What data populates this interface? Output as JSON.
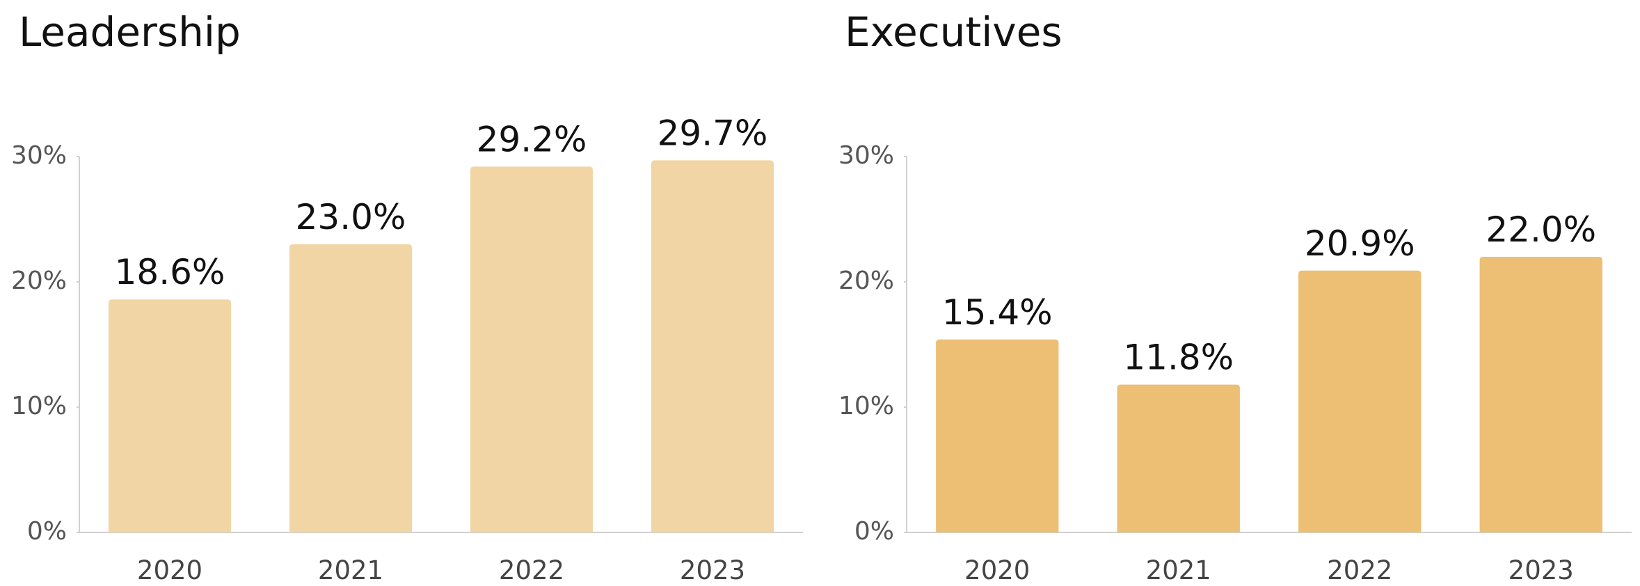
{
  "chart_data": [
    {
      "type": "bar",
      "title": "Leadership",
      "categories": [
        "2020",
        "2021",
        "2022",
        "2023"
      ],
      "values": [
        18.6,
        23.0,
        29.2,
        29.7
      ],
      "value_labels": [
        "18.6%",
        "23.0%",
        "29.2%",
        "29.7%"
      ],
      "color": "#f1d5a5",
      "ylim": [
        0,
        30
      ],
      "yticks": [
        {
          "value": 0,
          "label": "0%"
        },
        {
          "value": 10,
          "label": "10%"
        },
        {
          "value": 20,
          "label": "20%"
        },
        {
          "value": 30,
          "label": "30%"
        }
      ]
    },
    {
      "type": "bar",
      "title": "Executives",
      "categories": [
        "2020",
        "2021",
        "2022",
        "2023"
      ],
      "values": [
        15.4,
        11.8,
        20.9,
        22.0
      ],
      "value_labels": [
        "15.4%",
        "11.8%",
        "20.9%",
        "22.0%"
      ],
      "color": "#ecbf74",
      "ylim": [
        0,
        30
      ],
      "yticks": [
        {
          "value": 0,
          "label": "0%"
        },
        {
          "value": 10,
          "label": "10%"
        },
        {
          "value": 20,
          "label": "20%"
        },
        {
          "value": 30,
          "label": "30%"
        }
      ]
    }
  ]
}
